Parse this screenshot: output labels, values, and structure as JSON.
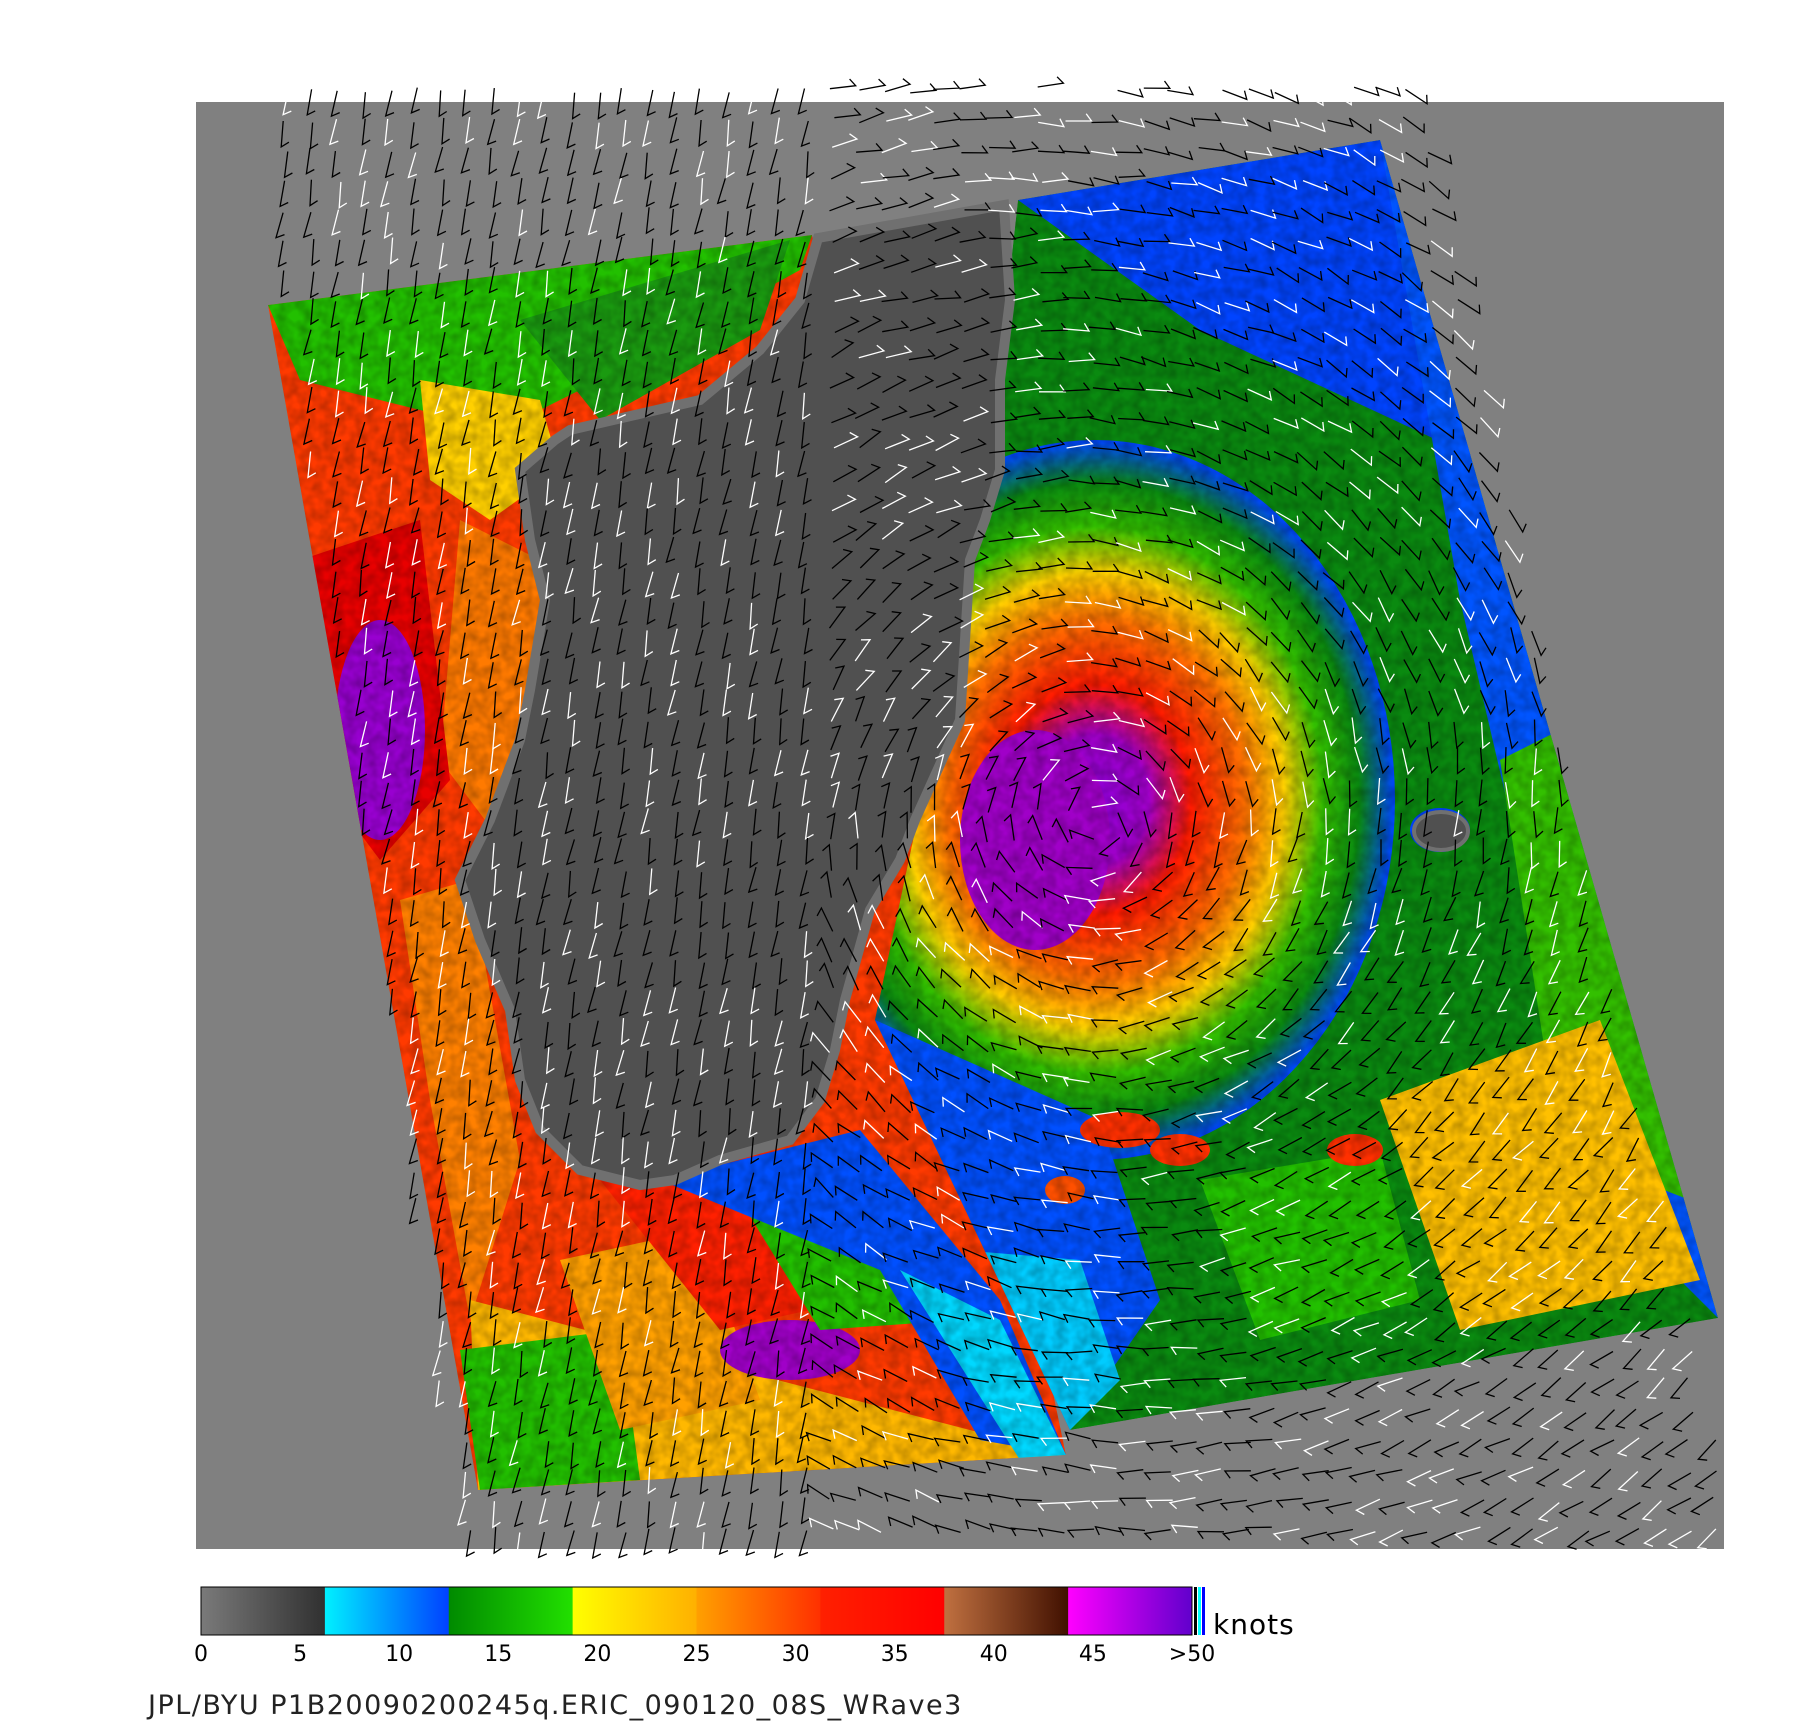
{
  "colorbar": {
    "unit": "knots",
    "ticks": [
      "0",
      "5",
      "10",
      "15",
      "20",
      "25",
      "30",
      "35",
      "40",
      "45",
      ">50"
    ],
    "ramps": [
      {
        "from": "#7a7a7a",
        "to": "#303030"
      },
      {
        "from": "#00f0ff",
        "to": "#0040ff"
      },
      {
        "from": "#008a00",
        "to": "#22e000"
      },
      {
        "from": "#ffff00",
        "to": "#ffb000"
      },
      {
        "from": "#ffa000",
        "to": "#ff3000"
      },
      {
        "from": "#ff2000",
        "to": "#ff0000"
      },
      {
        "from": "#c07040",
        "to": "#401000"
      },
      {
        "from": "#ff00ff",
        "to": "#6000cc"
      }
    ],
    "overflow_colors": [
      "#000000",
      "#00ffff",
      "#0000ff"
    ]
  },
  "map": {
    "land_color": "#505050",
    "nodata_color": "#808080",
    "barb_colors": [
      "#000000",
      "#ffffff"
    ]
  },
  "footer": "JPL/BYU  P1B20090200245q.ERIC_090120_08S_WRave3"
}
